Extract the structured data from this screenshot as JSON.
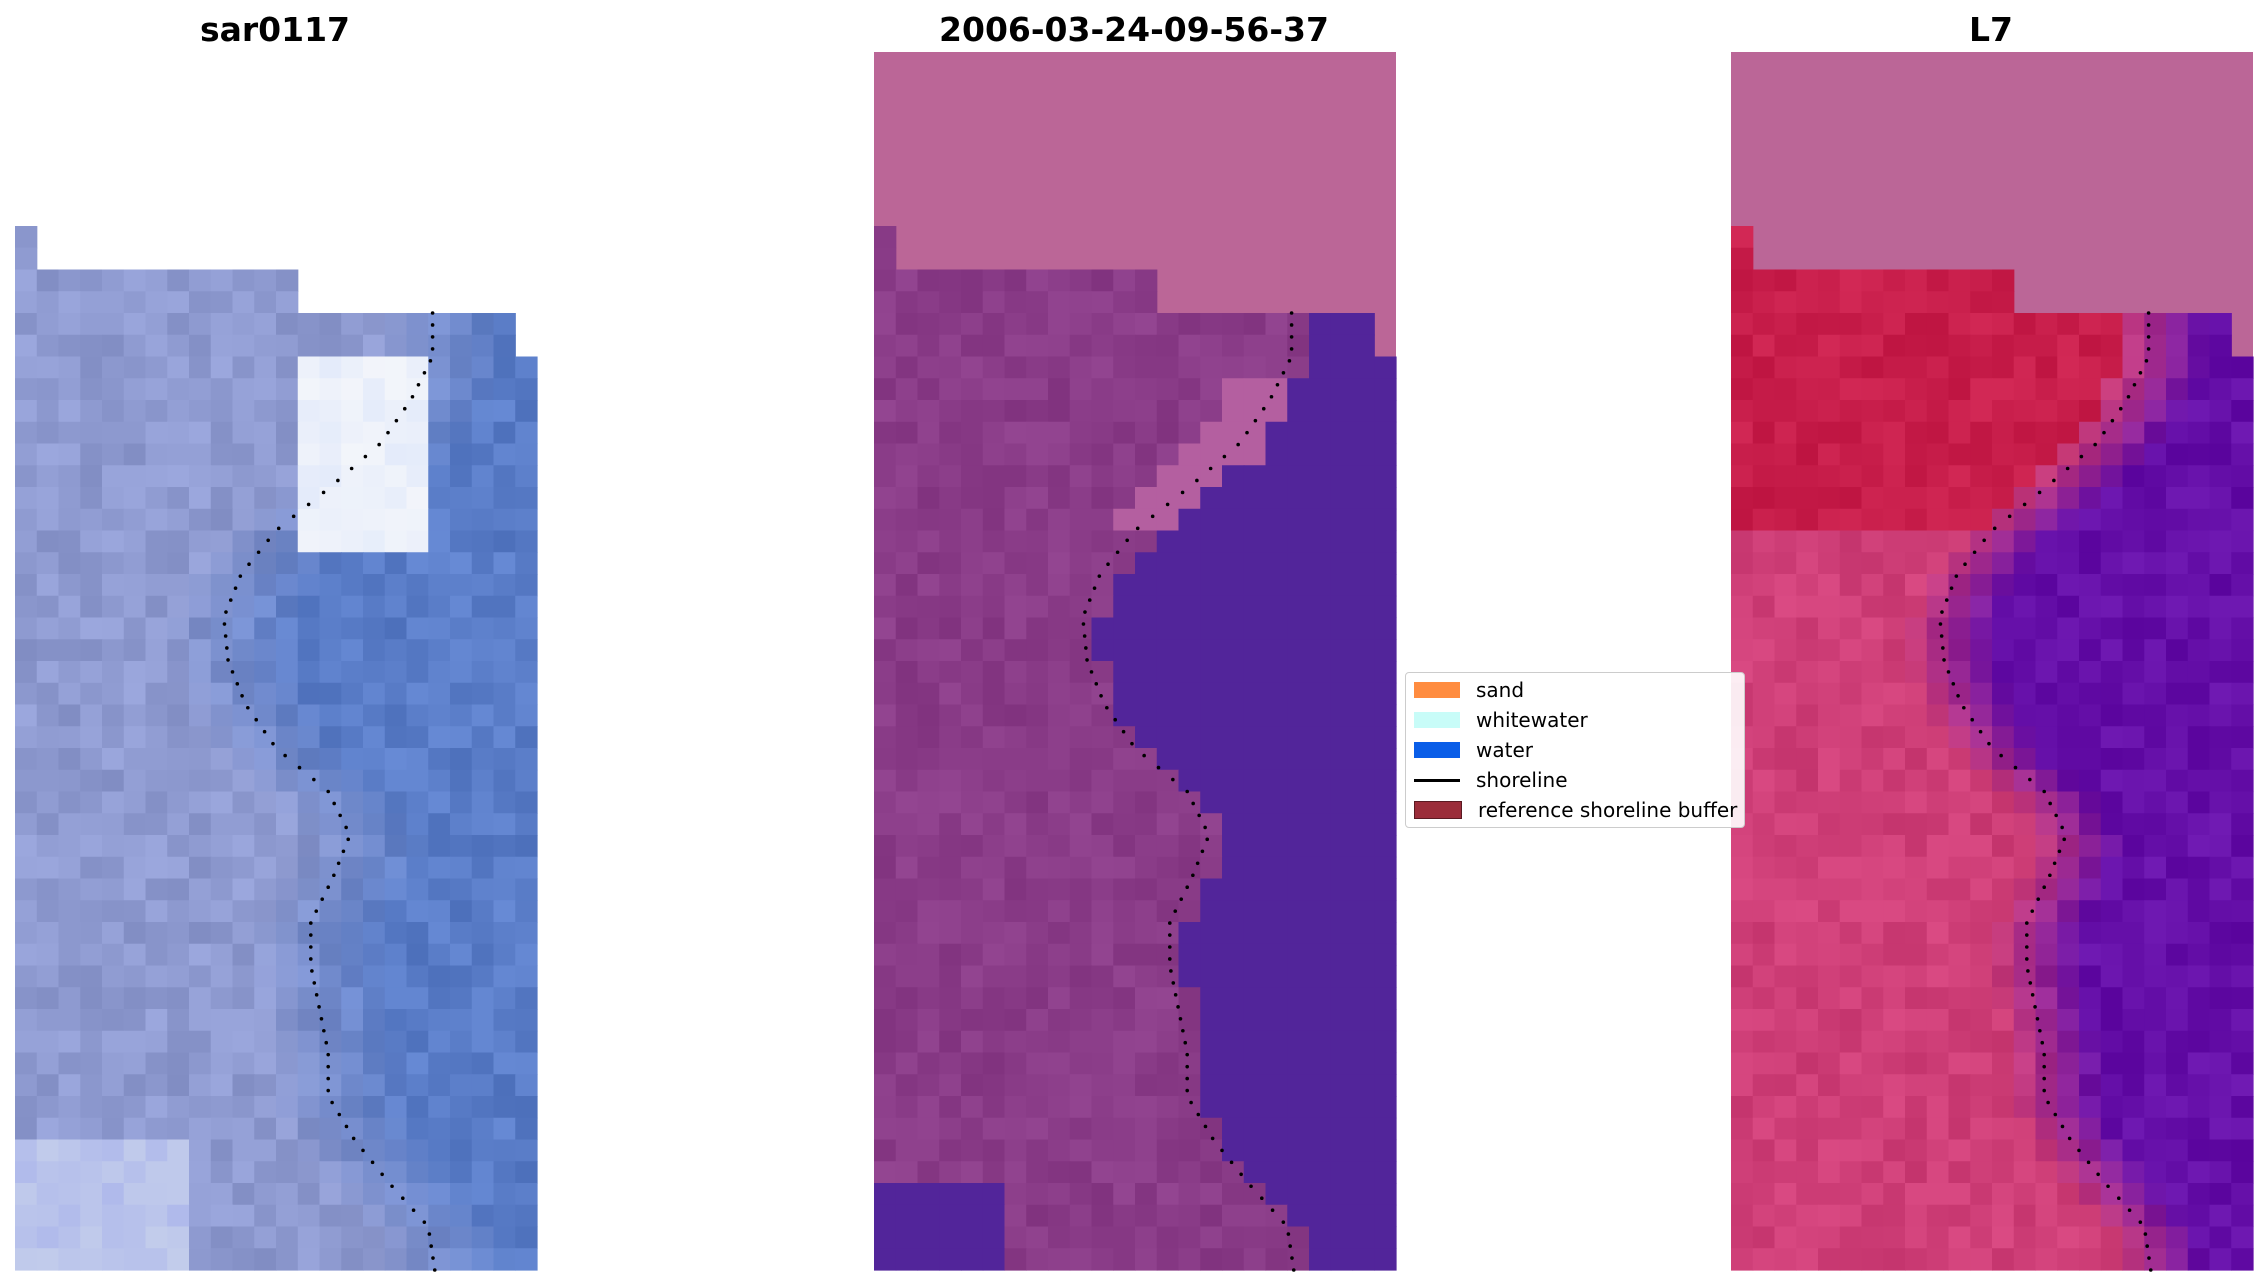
{
  "panels": [
    {
      "title": "sar0117",
      "kind": "rgb"
    },
    {
      "title": "2006-03-24-09-56-37",
      "kind": "classified"
    },
    {
      "title": "L7",
      "kind": "index"
    }
  ],
  "legend": {
    "items": [
      {
        "label": "sand",
        "color": "#ff8c40",
        "type": "patch"
      },
      {
        "label": "whitewater",
        "color": "#c8fcf8",
        "type": "patch"
      },
      {
        "label": "water",
        "color": "#0a5ee8",
        "type": "patch"
      },
      {
        "label": "shoreline",
        "color": "#000000",
        "type": "line"
      },
      {
        "label": "reference shoreline buffer",
        "color": "#9b2d3a",
        "type": "patch"
      }
    ]
  },
  "colors": {
    "rgb_water": "#5a7dc8",
    "rgb_land": "#8e9ad0",
    "classified_nodata": "#bb6697",
    "classified_water": "#52259a",
    "classified_land": "#8a3c88",
    "index_nodata": "#bb6697",
    "index_water": "#650fa8",
    "index_land": "#cf3f78"
  }
}
